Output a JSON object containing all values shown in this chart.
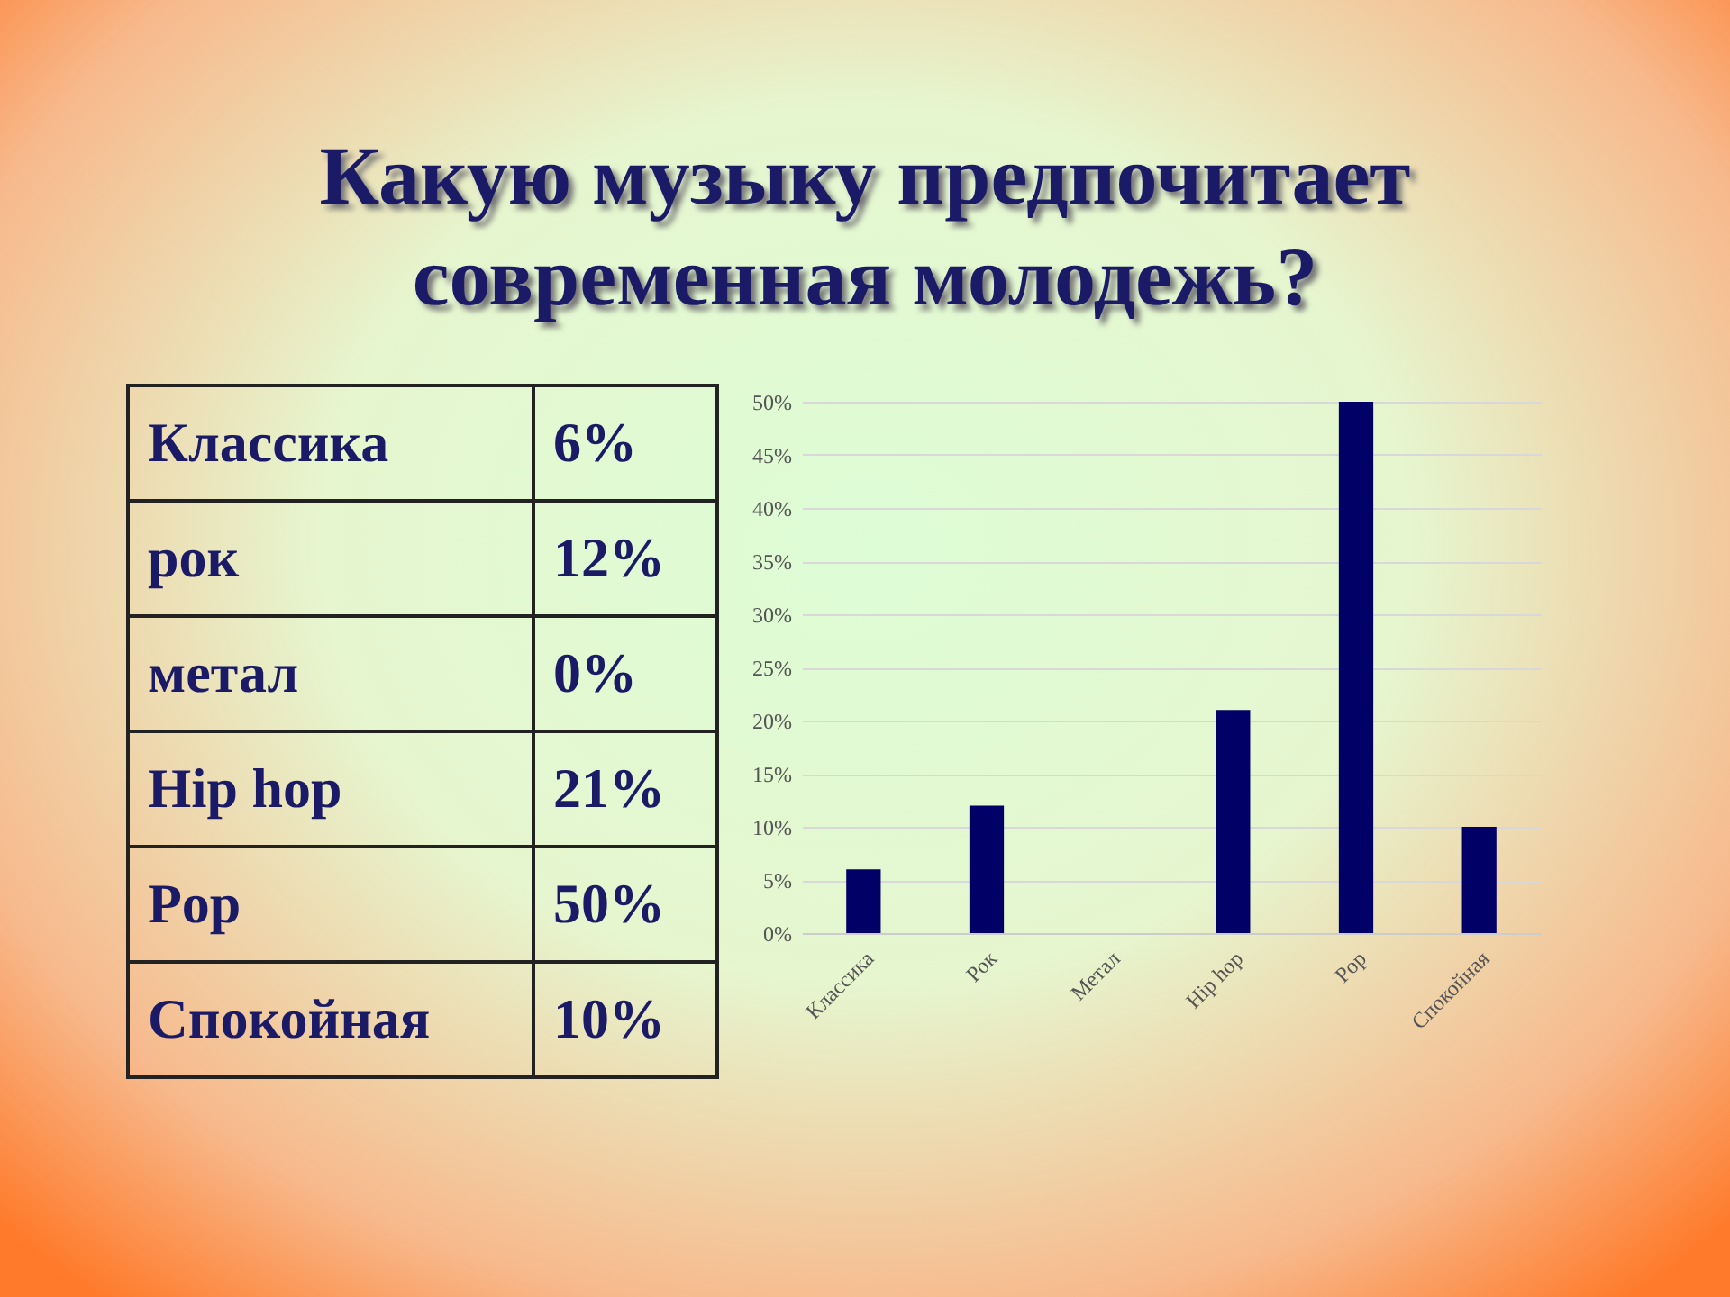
{
  "chart_data": [
    {
      "type": "other",
      "title": "Какую музыку предпочитает современная молодежь?",
      "categories": [
        "Классика",
        "рок",
        "метал",
        "Hip hop",
        "Pop",
        "Спокойная"
      ],
      "value_labels": [
        "6%",
        "12%",
        "0%",
        "21%",
        "50%",
        "10%"
      ]
    },
    {
      "type": "bar",
      "categories": [
        "Классика",
        "Рок",
        "Метал",
        "Hip hop",
        "Pop",
        "Спокойная"
      ],
      "values": [
        6,
        12,
        0,
        21,
        50,
        10
      ],
      "color": "#000066",
      "ylim": [
        0,
        50
      ],
      "yticks": [
        {
          "value": 0,
          "label": "0%"
        },
        {
          "value": 5,
          "label": "5%"
        },
        {
          "value": 10,
          "label": "10%"
        },
        {
          "value": 15,
          "label": "15%"
        },
        {
          "value": 20,
          "label": "20%"
        },
        {
          "value": 25,
          "label": "25%"
        },
        {
          "value": 30,
          "label": "30%"
        },
        {
          "value": 35,
          "label": "35%"
        },
        {
          "value": 40,
          "label": "40%"
        },
        {
          "value": 45,
          "label": "45%"
        },
        {
          "value": 50,
          "label": "50%"
        }
      ],
      "grid": true
    }
  ]
}
